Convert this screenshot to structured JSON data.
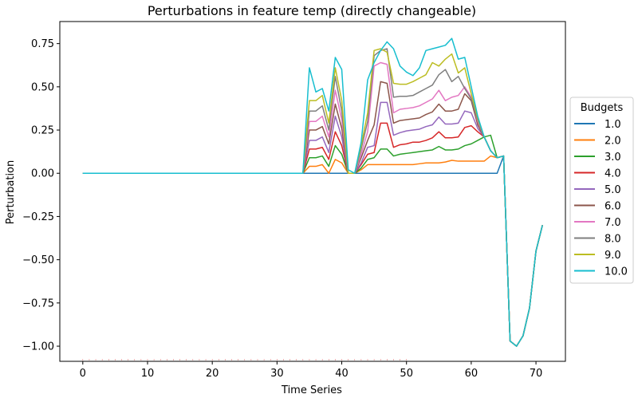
{
  "chart_data": {
    "type": "line",
    "title": "Perturbations in feature temp (directly changeable)",
    "xlabel": "Time Series",
    "ylabel": "Perturbation",
    "xlim": [
      -3.55,
      74.55
    ],
    "ylim": [
      -1.0875,
      0.8775
    ],
    "xticks": [
      0,
      10,
      20,
      30,
      40,
      50,
      60,
      70
    ],
    "xtick_labels": [
      "0",
      "10",
      "20",
      "30",
      "40",
      "50",
      "60",
      "70"
    ],
    "yticks": [
      0.75,
      0.5,
      0.25,
      0.0,
      -0.25,
      -0.5,
      -0.75,
      -1.0
    ],
    "ytick_labels": [
      "0.75",
      "0.50",
      "0.25",
      "0.00",
      "−0.25",
      "−0.50",
      "−0.75",
      "−1.00"
    ],
    "grid": false,
    "legend": {
      "title": "Budgets",
      "placement": "right, outside plot"
    },
    "x_start": 0,
    "tail": [
      0.1,
      -0.97,
      -1.0,
      -0.94,
      -0.78,
      -0.45,
      -0.3
    ],
    "series": [
      {
        "name": "1.0",
        "color": "#1f77b4",
        "active": [
          0,
          0,
          0,
          0,
          0,
          0,
          0,
          0,
          0,
          0,
          0,
          0,
          0,
          0,
          0,
          0,
          0,
          0,
          0,
          0,
          0,
          0,
          0,
          0,
          0,
          0,
          0,
          0,
          0,
          0
        ]
      },
      {
        "name": "2.0",
        "color": "#ff7f0e",
        "active": [
          0.04,
          0.04,
          0.05,
          0.0,
          0.08,
          0.06,
          0.0,
          0.0,
          0.02,
          0.05,
          0.05,
          0.05,
          0.05,
          0.05,
          0.05,
          0.05,
          0.05,
          0.055,
          0.06,
          0.06,
          0.06,
          0.065,
          0.075,
          0.07,
          0.07,
          0.07,
          0.07,
          0.07,
          0.1,
          0.09
        ]
      },
      {
        "name": "3.0",
        "color": "#2ca02c",
        "active": [
          0.09,
          0.09,
          0.1,
          0.04,
          0.16,
          0.11,
          0.0,
          0.0,
          0.03,
          0.08,
          0.09,
          0.14,
          0.14,
          0.1,
          0.11,
          0.115,
          0.12,
          0.125,
          0.13,
          0.135,
          0.155,
          0.135,
          0.135,
          0.14,
          0.16,
          0.17,
          0.19,
          0.21,
          0.22,
          0.09
        ]
      },
      {
        "name": "4.0",
        "color": "#d62728",
        "active": [
          0.14,
          0.14,
          0.15,
          0.08,
          0.24,
          0.16,
          0.0,
          0.0,
          0.05,
          0.11,
          0.12,
          0.29,
          0.29,
          0.15,
          0.165,
          0.17,
          0.18,
          0.18,
          0.19,
          0.205,
          0.24,
          0.205,
          0.205,
          0.21,
          0.265,
          0.275,
          0.24,
          0.21,
          0.13,
          0.09
        ]
      },
      {
        "name": "5.0",
        "color": "#9467bd",
        "active": [
          0.19,
          0.19,
          0.21,
          0.12,
          0.33,
          0.21,
          0.0,
          0.0,
          0.06,
          0.15,
          0.16,
          0.41,
          0.41,
          0.22,
          0.235,
          0.245,
          0.25,
          0.255,
          0.27,
          0.28,
          0.325,
          0.285,
          0.285,
          0.29,
          0.36,
          0.35,
          0.26,
          0.21,
          0.13,
          0.09
        ]
      },
      {
        "name": "6.0",
        "color": "#8c564b",
        "active": [
          0.25,
          0.25,
          0.27,
          0.17,
          0.4,
          0.26,
          0.0,
          0.0,
          0.09,
          0.19,
          0.28,
          0.53,
          0.52,
          0.29,
          0.305,
          0.31,
          0.315,
          0.32,
          0.34,
          0.355,
          0.4,
          0.36,
          0.36,
          0.37,
          0.46,
          0.42,
          0.28,
          0.21,
          0.13,
          0.09
        ]
      },
      {
        "name": "7.0",
        "color": "#e377c2",
        "active": [
          0.3,
          0.3,
          0.33,
          0.21,
          0.48,
          0.31,
          0.0,
          0.0,
          0.11,
          0.24,
          0.62,
          0.64,
          0.63,
          0.35,
          0.37,
          0.375,
          0.38,
          0.39,
          0.41,
          0.43,
          0.48,
          0.42,
          0.44,
          0.45,
          0.5,
          0.44,
          0.3,
          0.21,
          0.13,
          0.09
        ]
      },
      {
        "name": "8.0",
        "color": "#7f7f7f",
        "active": [
          0.36,
          0.36,
          0.39,
          0.25,
          0.56,
          0.36,
          0.0,
          0.0,
          0.14,
          0.3,
          0.68,
          0.71,
          0.72,
          0.44,
          0.445,
          0.445,
          0.45,
          0.47,
          0.49,
          0.51,
          0.57,
          0.6,
          0.53,
          0.56,
          0.49,
          0.43,
          0.31,
          0.21,
          0.13,
          0.09
        ]
      },
      {
        "name": "9.0",
        "color": "#bcbd22",
        "active": [
          0.42,
          0.42,
          0.45,
          0.29,
          0.61,
          0.42,
          0.0,
          0.0,
          0.16,
          0.35,
          0.71,
          0.72,
          0.7,
          0.52,
          0.515,
          0.515,
          0.53,
          0.55,
          0.57,
          0.64,
          0.62,
          0.66,
          0.69,
          0.58,
          0.61,
          0.46,
          0.32,
          0.21,
          0.13,
          0.09
        ]
      },
      {
        "name": "10.0",
        "color": "#17becf",
        "active": [
          0.61,
          0.47,
          0.49,
          0.36,
          0.67,
          0.6,
          0.02,
          0.0,
          0.18,
          0.54,
          0.64,
          0.71,
          0.76,
          0.72,
          0.62,
          0.585,
          0.565,
          0.61,
          0.71,
          0.72,
          0.73,
          0.74,
          0.78,
          0.66,
          0.67,
          0.5,
          0.33,
          0.21,
          0.13,
          0.09
        ]
      }
    ]
  }
}
